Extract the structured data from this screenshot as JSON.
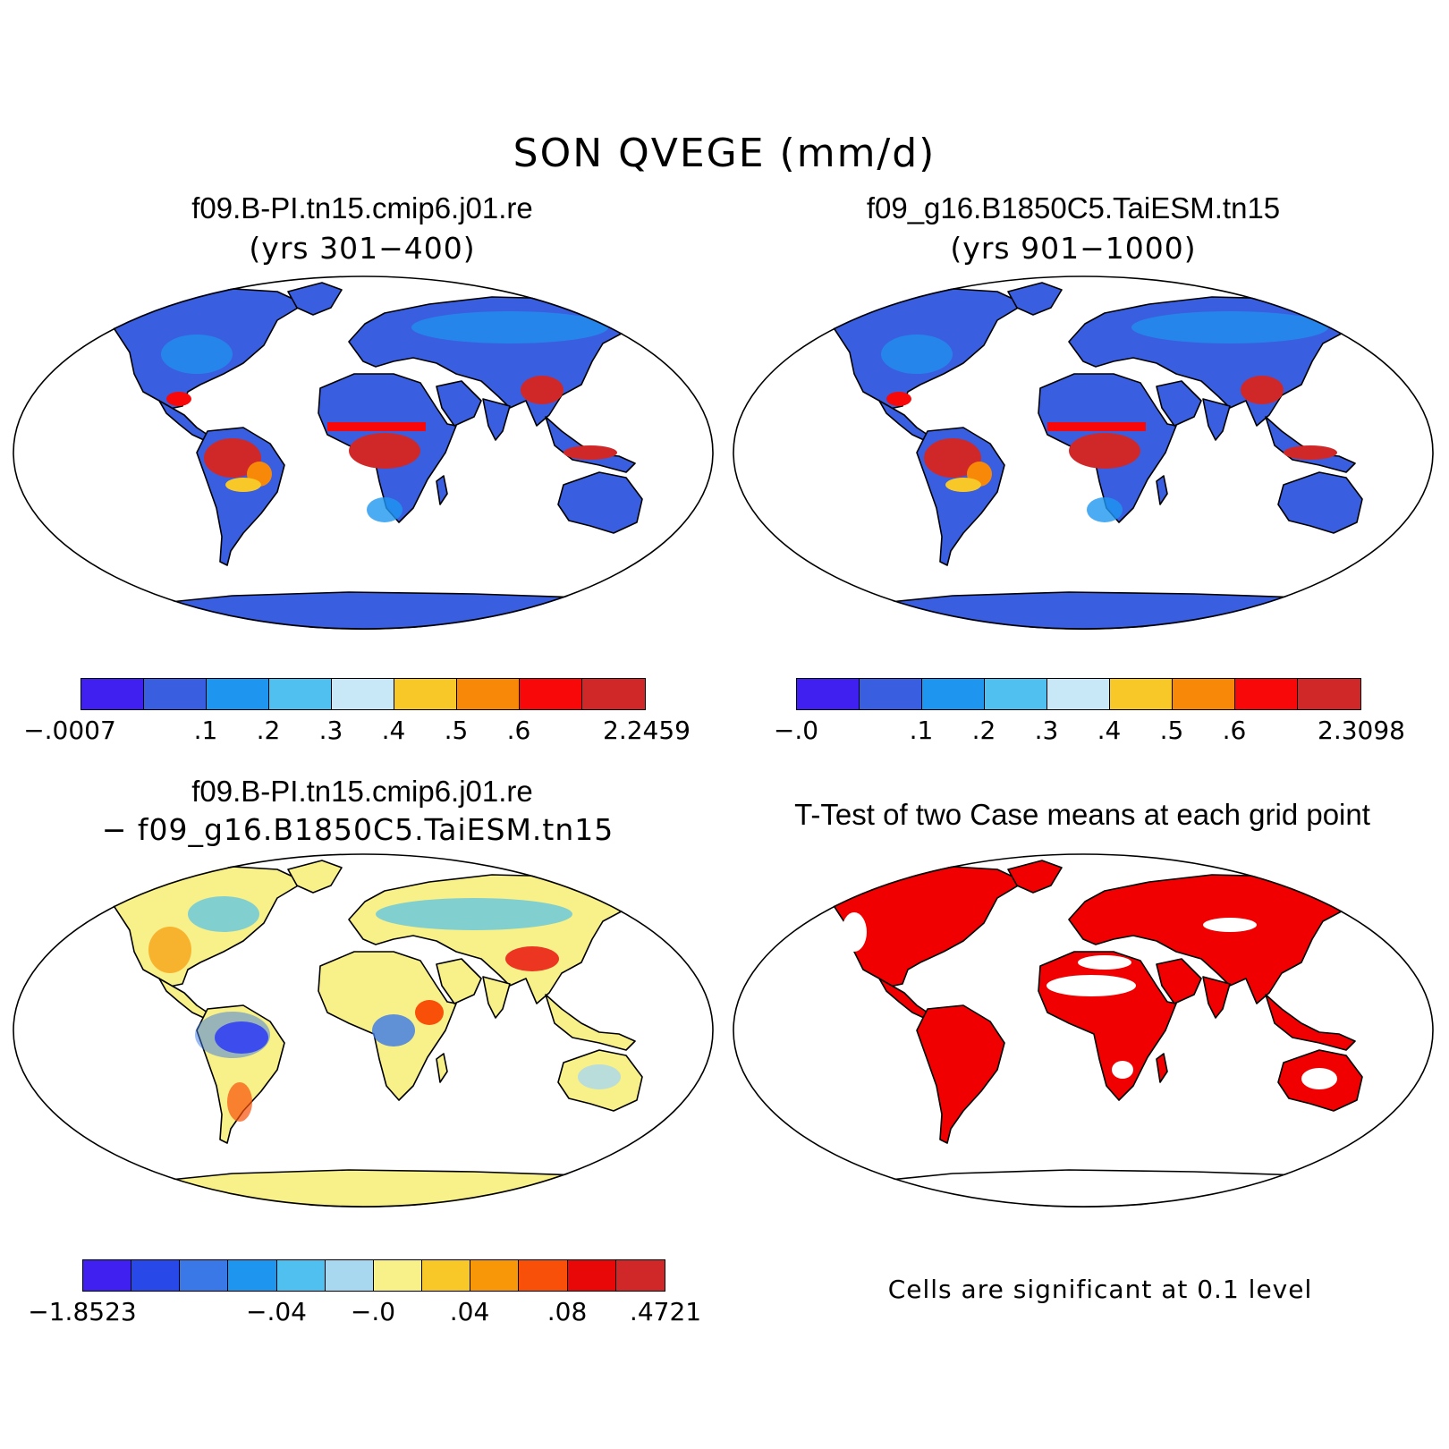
{
  "title": "SON QVEGE (mm/d)",
  "panels": {
    "top_left": {
      "title": "f09.B-PI.tn15.cmip6.j01.re",
      "subtitle": "(yrs 301−400)",
      "colorbar": {
        "colors": [
          "#4020f0",
          "#3a5ee0",
          "#1e96f0",
          "#50c0f0",
          "#c8e8f8",
          "#f8c828",
          "#f88808",
          "#f80808",
          "#d02828"
        ],
        "labels": [
          "−.0007",
          ".1",
          ".2",
          ".3",
          ".4",
          ".5",
          ".6",
          "2.2459"
        ]
      }
    },
    "top_right": {
      "title": "f09_g16.B1850C5.TaiESM.tn15",
      "subtitle": "(yrs 901−1000)",
      "colorbar": {
        "colors": [
          "#4020f0",
          "#3a5ee0",
          "#1e96f0",
          "#50c0f0",
          "#c8e8f8",
          "#f8c828",
          "#f88808",
          "#f80808",
          "#d02828"
        ],
        "labels": [
          "−.0",
          ".1",
          ".2",
          ".3",
          ".4",
          ".5",
          ".6",
          "2.3098"
        ]
      }
    },
    "bottom_left": {
      "title": "f09.B-PI.tn15.cmip6.j01.re",
      "subtitle": "− f09_g16.B1850C5.TaiESM.tn15",
      "colorbar": {
        "colors": [
          "#4020f0",
          "#2848e8",
          "#3a78e8",
          "#1e96f0",
          "#50c0f0",
          "#a8d8f0",
          "#f8f088",
          "#f8c828",
          "#f89808",
          "#f85008",
          "#e80808",
          "#d02828"
        ],
        "labels": [
          "−1.8523",
          "−.04",
          "−.0",
          ".04",
          ".08",
          ".4721"
        ]
      }
    },
    "bottom_right": {
      "title": "T-Test of two Case means at each grid point",
      "note": "Cells are significant at 0.1 level",
      "sig_color": "#f00000"
    }
  }
}
